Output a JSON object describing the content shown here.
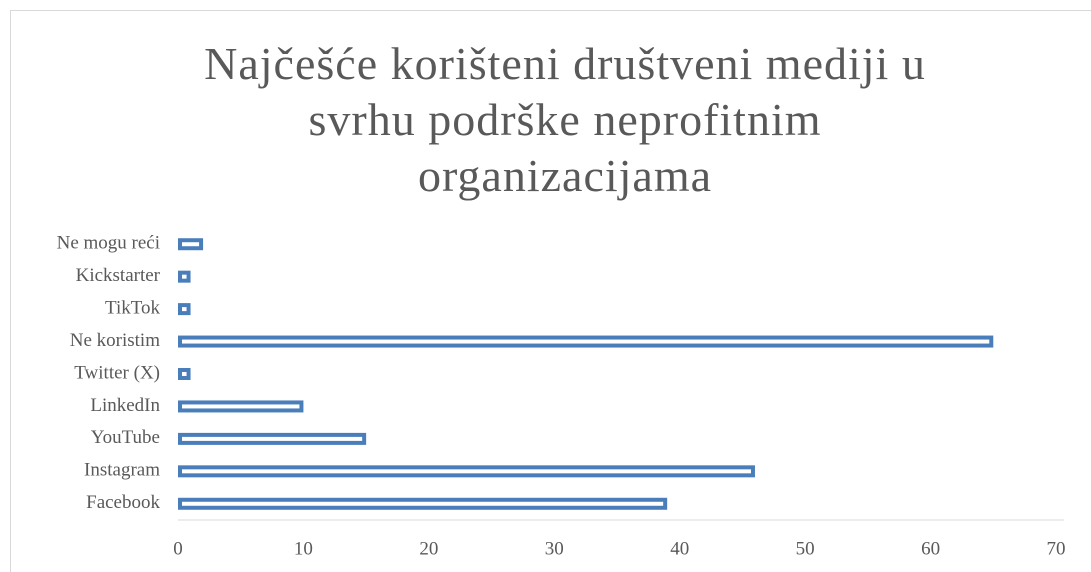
{
  "chart_data": {
    "type": "bar",
    "orientation": "horizontal",
    "title": "Najčešće korišteni društveni mediji u svrhu podrške neprofitnim organizacijama",
    "categories": [
      "Facebook",
      "Instagram",
      "YouTube",
      "LinkedIn",
      "Twitter (X)",
      "Ne koristim",
      "TikTok",
      "Kickstarter",
      "Ne mogu reći"
    ],
    "values": [
      39,
      46,
      15,
      10,
      1,
      65,
      1,
      1,
      2
    ],
    "color": "#4a7ebb",
    "xlim": [
      0,
      70
    ],
    "xticks": [
      0,
      10,
      20,
      30,
      40,
      50,
      60,
      70
    ],
    "grid": false
  }
}
